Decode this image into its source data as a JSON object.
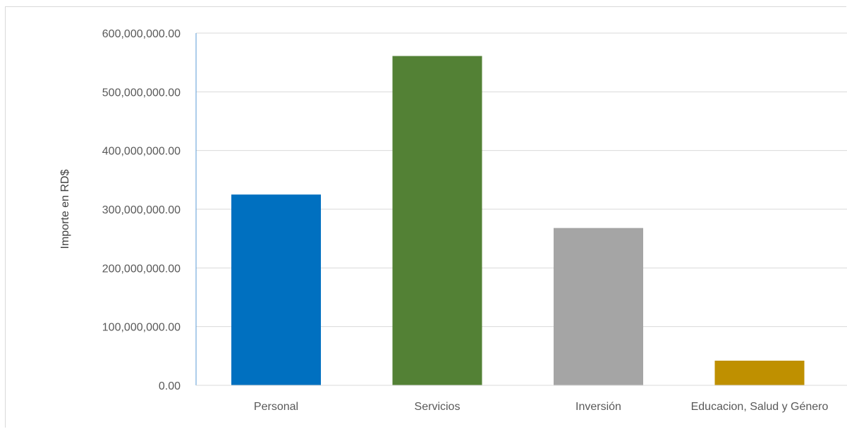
{
  "chart_data": {
    "type": "bar",
    "title": "",
    "xlabel": "",
    "ylabel": "Importe en RD$",
    "categories": [
      "Personal",
      "Servicios",
      "Inversión",
      "Educacion, Salud y Género"
    ],
    "values": [
      325000000,
      561000000,
      268000000,
      42000000
    ],
    "colors": [
      "#0070c0",
      "#538135",
      "#a5a5a5",
      "#bf9000"
    ],
    "ylim": [
      0,
      600000000
    ],
    "yticks": [
      0,
      100000000,
      200000000,
      300000000,
      400000000,
      500000000,
      600000000
    ],
    "ytick_labels": [
      "0.00",
      "100,000,000.00",
      "200,000,000.00",
      "300,000,000.00",
      "400,000,000.00",
      "500,000,000.00",
      "600,000,000.00"
    ],
    "grid": true,
    "legend": "none"
  }
}
